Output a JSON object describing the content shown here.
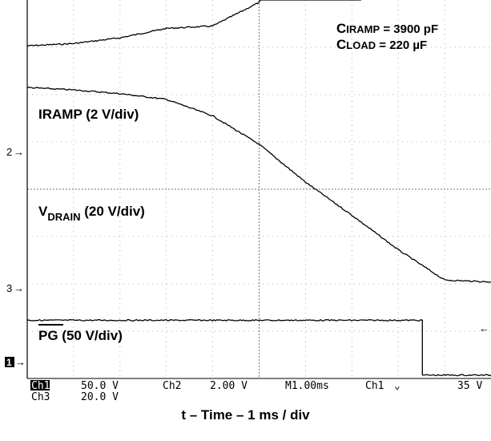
{
  "chart_data": {
    "type": "line",
    "xlabel": "t – Time – 1 ms / div",
    "grid": true,
    "divisions": {
      "x": 10,
      "y": 8
    },
    "annotations": {
      "c_iramp": {
        "symbol": "C",
        "sub": "IRAMP",
        "value": " = 3900 pF"
      },
      "c_load": {
        "symbol": "C",
        "sub": "LOAD",
        "value": " = 220 µF"
      }
    },
    "series": [
      {
        "name": "IRAMP (2 V/div)",
        "channel_marker": "2",
        "color": "#000000",
        "x_div": [
          0,
          1,
          2,
          3,
          4,
          5,
          6,
          7.2
        ],
        "y_div": [
          7.03,
          7.08,
          7.2,
          7.4,
          7.45,
          7.95,
          9.85,
          11.0
        ]
      },
      {
        "name_main": "V",
        "name_sub": "DRAIN",
        "name_tail": " (20 V/div)",
        "channel_marker": "3",
        "color": "#000000",
        "x_div": [
          0,
          1,
          2,
          3,
          4,
          5,
          6,
          7,
          8,
          9,
          10
        ],
        "y_div": [
          6.15,
          6.1,
          6.02,
          5.9,
          5.55,
          4.95,
          4.15,
          3.45,
          2.72,
          2.08,
          2.04
        ]
      },
      {
        "name_overbar": "PG",
        "name_tail": " (50 V/div)",
        "channel_marker": "1",
        "color": "#000000",
        "x_div": [
          0,
          8.52,
          8.52,
          10
        ],
        "y_div": [
          1.23,
          1.23,
          0.07,
          0.07
        ]
      }
    ],
    "status_bar": {
      "row1": [
        {
          "text": "Ch1",
          "highlight": true
        },
        {
          "text": "50.0 V"
        },
        {
          "text": "Ch2"
        },
        {
          "text": "2.00 V"
        },
        {
          "text": "M1.00ms"
        },
        {
          "text": "Ch1"
        },
        {
          "text": "⌄"
        },
        {
          "text": "35 V"
        }
      ],
      "row2": [
        {
          "text": "Ch3"
        },
        {
          "text": "20.0 V"
        }
      ]
    }
  }
}
